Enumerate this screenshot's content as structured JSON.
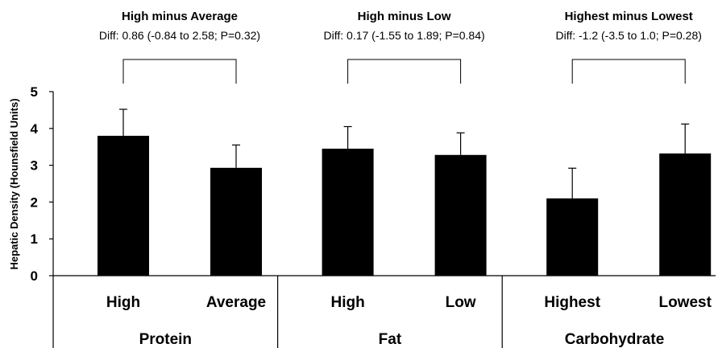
{
  "chart_data": {
    "type": "bar",
    "ylabel": "Hepatic Density (Hounsfield Units)",
    "ylim": [
      0,
      5
    ],
    "yticks": [
      "0",
      "1",
      "2",
      "3",
      "4",
      "5"
    ],
    "groups": [
      {
        "label": "Protein",
        "bars": [
          {
            "category": "High",
            "value": 3.8,
            "error": 0.72
          },
          {
            "category": "Average",
            "value": 2.93,
            "error": 0.62
          }
        ],
        "comparison": {
          "title": "High minus Average",
          "stat": "Diff: 0.86 (-0.84 to 2.58; P=0.32)"
        }
      },
      {
        "label": "Fat",
        "bars": [
          {
            "category": "High",
            "value": 3.45,
            "error": 0.6
          },
          {
            "category": "Low",
            "value": 3.28,
            "error": 0.6
          }
        ],
        "comparison": {
          "title": "High minus Low",
          "stat": "Diff: 0.17 (-1.55 to 1.89; P=0.84)"
        }
      },
      {
        "label": "Carbohydrate",
        "bars": [
          {
            "category": "Highest",
            "value": 2.1,
            "error": 0.82
          },
          {
            "category": "Lowest",
            "value": 3.32,
            "error": 0.8
          }
        ],
        "comparison": {
          "title": "Highest minus Lowest",
          "stat": "Diff: -1.2 (-3.5 to 1.0; P=0.28)"
        }
      }
    ],
    "bar_color": "#000000",
    "grid": false,
    "legend": "none"
  }
}
